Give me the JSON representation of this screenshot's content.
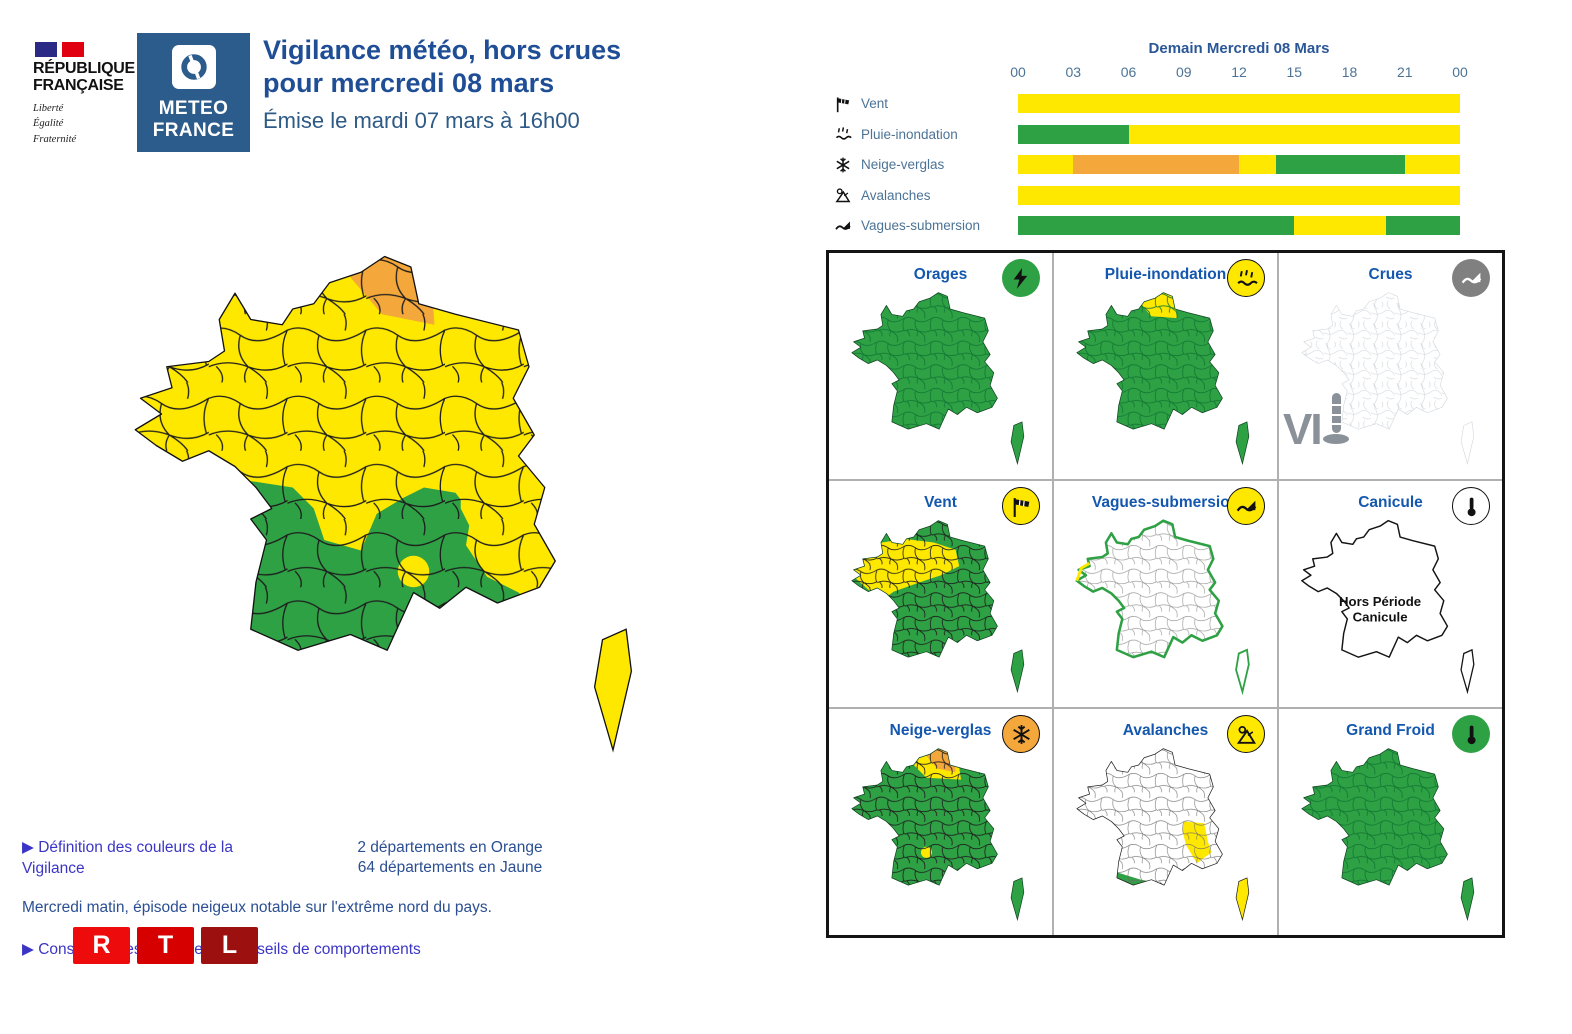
{
  "colors": {
    "yellow": "#FFE800",
    "green": "#2FA145",
    "orange": "#F4A73B",
    "title_blue": "#1F4E96",
    "grid_title_blue": "#1457AE",
    "timeline_label_blue": "#4C7396",
    "link_blue": "#3B35C5",
    "text_blue": "#2B4F92",
    "mf_blue": "#2C5C8C"
  },
  "header": {
    "republique": {
      "line1": "RÉPUBLIQUE",
      "line2": "FRANÇAISE",
      "motto1": "Liberté",
      "motto2": "Égalité",
      "motto3": "Fraternité",
      "flag_blue": "#2A2A86",
      "flag_red": "#E1000F"
    },
    "meteo_france": {
      "line1": "METEO",
      "line2": "FRANCE"
    },
    "title_line1": "Vigilance météo, hors crues",
    "title_line2": "pour mercredi 08 mars",
    "subtitle": "Émise le mardi 07 mars à 16h00"
  },
  "main_map": {
    "style": "main"
  },
  "footer": {
    "bullet": "▶",
    "link_definition": "Définition des couleurs de la Vigilance",
    "count_orange": "2 départements en Orange",
    "count_jaune": "64 départements en Jaune",
    "note": "Mercredi matin, épisode neigeux notable sur l'extrême nord du pays.",
    "link_conseils": "Conséquences possibles et conseils de comportements",
    "rtl": {
      "letters": [
        "R",
        "T",
        "L"
      ],
      "box_colors": [
        "#EE0B0B",
        "#D60000",
        "#9C1010"
      ]
    }
  },
  "timeline": {
    "type": "timeline-heatmap",
    "title": "Demain Mercredi 08 Mars",
    "hours": [
      "00",
      "03",
      "06",
      "09",
      "12",
      "15",
      "18",
      "21",
      "00"
    ],
    "x_range": [
      0,
      24
    ],
    "level_colors": {
      "vert": "#2FA145",
      "jaune": "#FFE800",
      "orange": "#F4A73B"
    },
    "rows": [
      {
        "label": "Vent",
        "icon": "windsock-icon",
        "segments": [
          {
            "from": 0,
            "to": 24,
            "level": "jaune"
          }
        ]
      },
      {
        "label": "Pluie-inondation",
        "icon": "rain-icon",
        "segments": [
          {
            "from": 0,
            "to": 6,
            "level": "vert"
          },
          {
            "from": 6,
            "to": 24,
            "level": "jaune"
          }
        ]
      },
      {
        "label": "Neige-verglas",
        "icon": "snowflake-icon",
        "segments": [
          {
            "from": 0,
            "to": 3,
            "level": "jaune"
          },
          {
            "from": 3,
            "to": 12,
            "level": "orange"
          },
          {
            "from": 12,
            "to": 14,
            "level": "jaune"
          },
          {
            "from": 14,
            "to": 21,
            "level": "vert"
          },
          {
            "from": 21,
            "to": 24,
            "level": "jaune"
          }
        ]
      },
      {
        "label": "Avalanches",
        "icon": "avalanche-icon",
        "segments": [
          {
            "from": 0,
            "to": 24,
            "level": "jaune"
          }
        ]
      },
      {
        "label": "Vagues-submersion",
        "icon": "wave-icon",
        "segments": [
          {
            "from": 0,
            "to": 15,
            "level": "vert"
          },
          {
            "from": 15,
            "to": 20,
            "level": "jaune"
          },
          {
            "from": 20,
            "to": 24,
            "level": "vert"
          }
        ]
      }
    ]
  },
  "grid": {
    "cells": [
      {
        "title": "Orages",
        "icon": "lightning-icon",
        "icon_bg": "#2FA145",
        "icon_fg": "#111111",
        "icon_border": false,
        "map": "all-green"
      },
      {
        "title": "Pluie-inondation",
        "icon": "rain-icon",
        "icon_bg": "#FFE800",
        "icon_fg": "#111111",
        "icon_border": true,
        "map": "pluie"
      },
      {
        "title": "Crues",
        "icon": "wave-icon",
        "icon_bg": "#808080",
        "icon_fg": "#ffffff",
        "icon_border": false,
        "map": "rivers",
        "watermark": "VI"
      },
      {
        "title": "Vent",
        "icon": "windsock-icon",
        "icon_bg": "#FFE800",
        "icon_fg": "#111111",
        "icon_border": true,
        "map": "vent"
      },
      {
        "title": "Vagues-submersion",
        "icon": "wave-icon",
        "icon_bg": "#FFE800",
        "icon_fg": "#111111",
        "icon_border": true,
        "map": "coast"
      },
      {
        "title": "Canicule",
        "icon": "thermometer-icon",
        "icon_bg": "#ffffff",
        "icon_fg": "#111111",
        "icon_border": true,
        "map": "outline",
        "center_text1": "Hors Période",
        "center_text2": "Canicule"
      },
      {
        "title": "Neige-verglas",
        "icon": "snowflake-icon",
        "icon_bg": "#F4A73B",
        "icon_fg": "#111111",
        "icon_border": true,
        "map": "neige"
      },
      {
        "title": "Avalanches",
        "icon": "avalanche-icon",
        "icon_bg": "#FFE800",
        "icon_fg": "#111111",
        "icon_border": true,
        "map": "avalanche"
      },
      {
        "title": "Grand Froid",
        "icon": "thermometer-icon",
        "icon_bg": "#2FA145",
        "icon_fg": "#111111",
        "icon_border": false,
        "map": "all-green"
      }
    ]
  }
}
